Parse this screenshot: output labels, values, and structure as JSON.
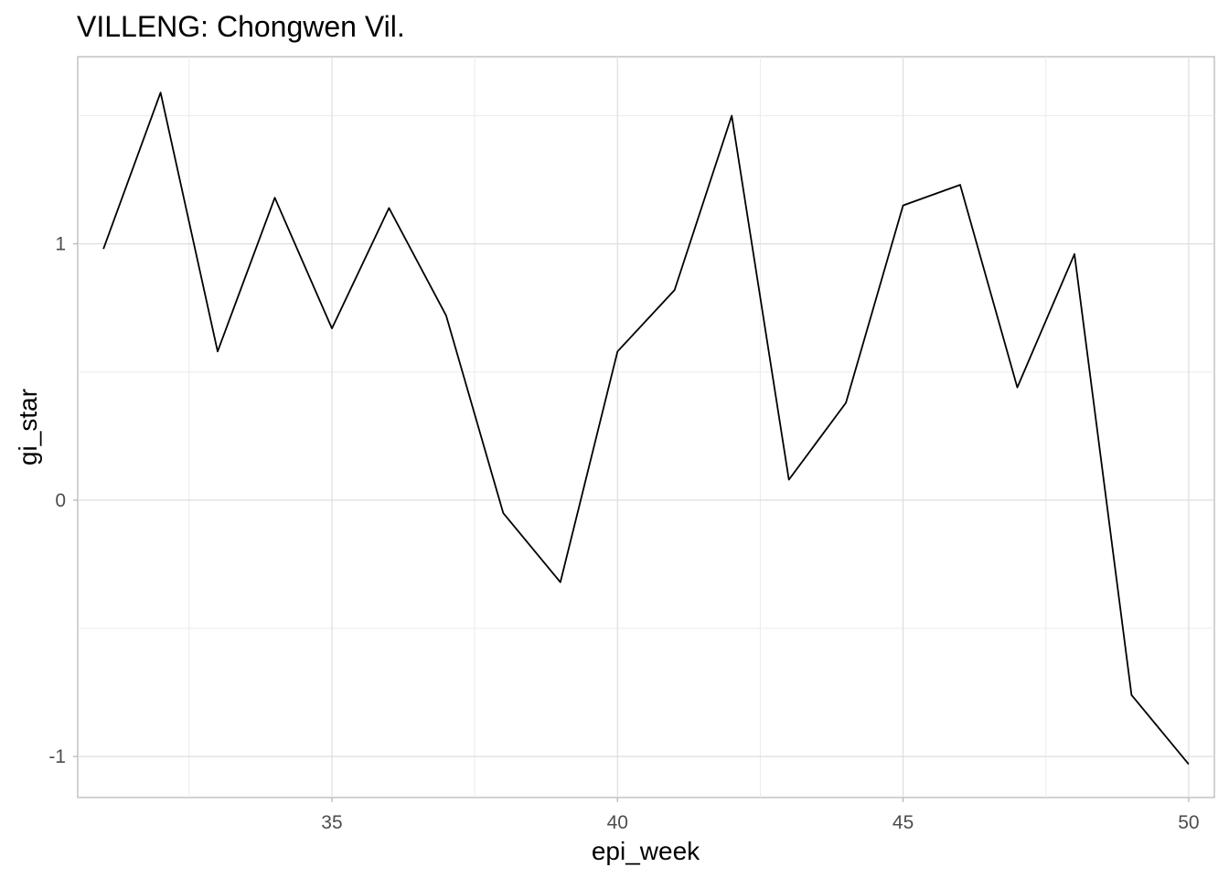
{
  "chart_data": {
    "type": "line",
    "title": "VILLENG: Chongwen Vil.",
    "xlabel": "epi_week",
    "ylabel": "gi_star",
    "x_ticks": [
      "35",
      "40",
      "45",
      "50"
    ],
    "y_ticks": [
      "-1",
      "0",
      "1"
    ],
    "xlim": [
      30.55,
      50.45
    ],
    "ylim": [
      -1.16,
      1.73
    ],
    "grid": true,
    "legend": "none",
    "line_color": "#000000",
    "series": [
      {
        "x": [
          31,
          32,
          33,
          34,
          35,
          36,
          37,
          38,
          39,
          40,
          41,
          42,
          43,
          44,
          45,
          46,
          47,
          48,
          49,
          50
        ],
        "y": [
          0.98,
          1.59,
          0.58,
          1.18,
          0.67,
          1.14,
          0.72,
          -0.05,
          -0.32,
          0.58,
          0.82,
          1.5,
          0.08,
          0.38,
          1.15,
          1.23,
          0.44,
          0.96,
          -0.76,
          -1.03
        ]
      }
    ]
  }
}
